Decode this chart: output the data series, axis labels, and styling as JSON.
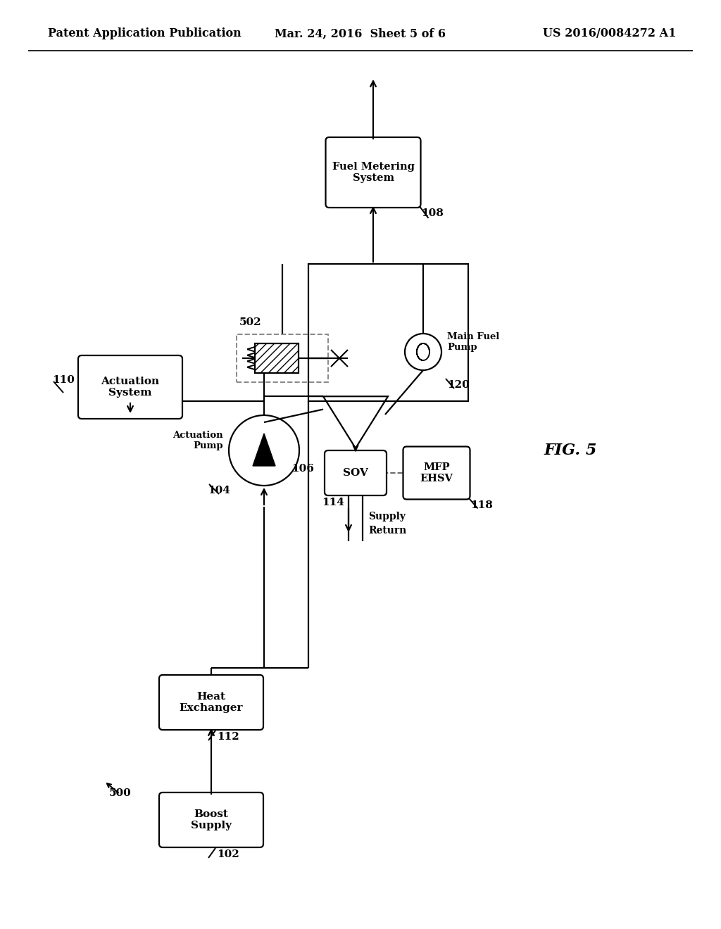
{
  "bg_color": "#ffffff",
  "header_left": "Patent Application Publication",
  "header_mid": "Mar. 24, 2016  Sheet 5 of 6",
  "header_right": "US 2016/0084272 A1",
  "fig_label": "FIG. 5",
  "diagram_ref": "500",
  "lw": 1.6
}
